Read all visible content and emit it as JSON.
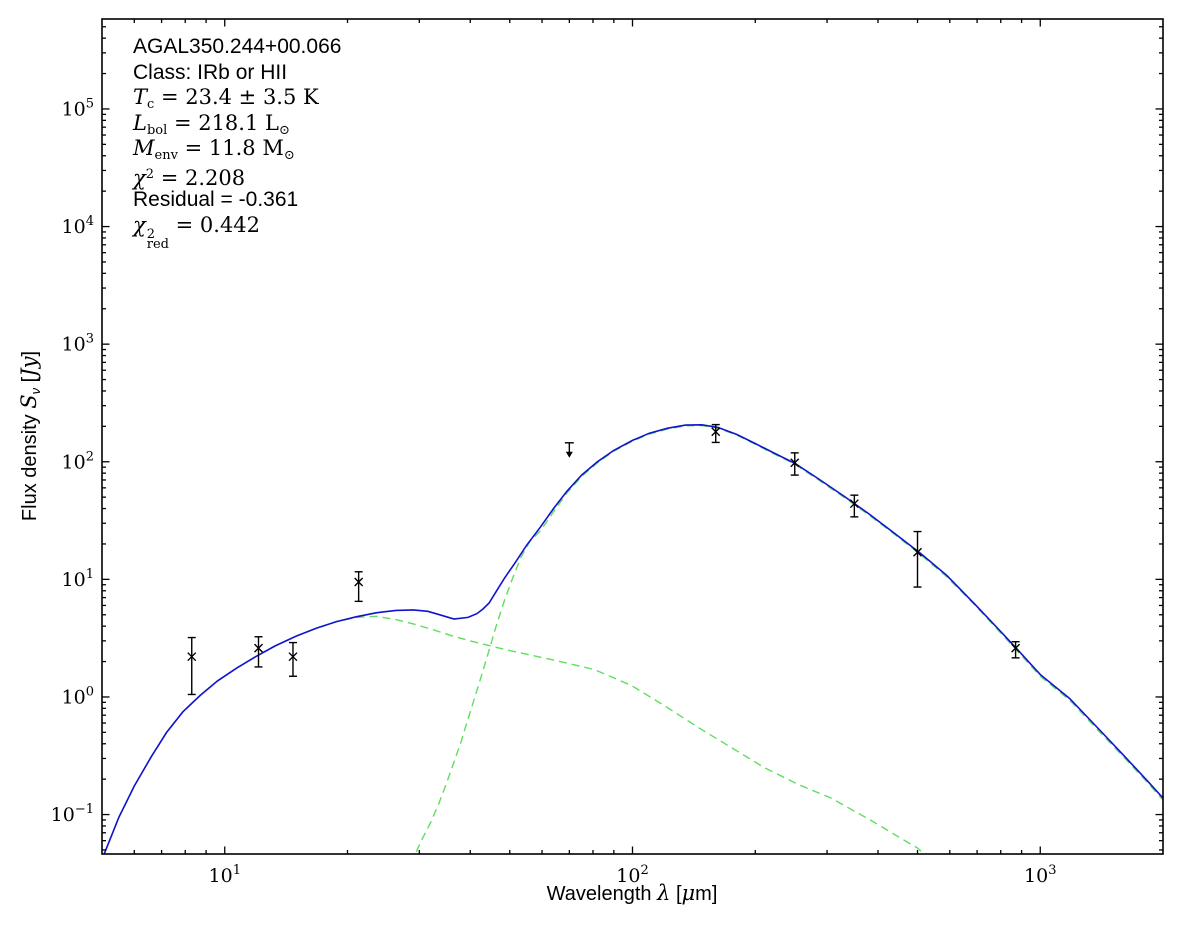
{
  "annotation": {
    "source_name": "AGAL350.244+00.066",
    "class_line": "Class: IRb or HII",
    "tc": {
      "symbol": "T",
      "subscript": "c",
      "text": " = 23.4 ± 3.5 K"
    },
    "lbol": {
      "symbol": "L",
      "subscript": "bol",
      "text": " = 218.1 L",
      "unit_sub": "⊙"
    },
    "menv": {
      "symbol": "M",
      "subscript": "env",
      "text": " = 11.8 M",
      "unit_sub": "⊙"
    },
    "chi2": {
      "symbol": "χ",
      "superscript": "2",
      "text": " = 2.208"
    },
    "residual": "Residual = -0.361",
    "chi2red": {
      "symbol": "χ",
      "superscript": "2",
      "subscript": "red",
      "text": " = 0.442"
    }
  },
  "axes": {
    "xlabel": {
      "word": "Wavelength",
      "symbol": "λ",
      "open": "[",
      "mu": "μ",
      "unit": "m]"
    },
    "ylabel": {
      "word": "Flux density",
      "symbol": "S",
      "subscript": "ν",
      "open": "[",
      "unit": "Jy",
      "close": "]"
    }
  },
  "chart_data": {
    "type": "line",
    "x_scale": "log",
    "y_scale": "log",
    "xlim": [
      5,
      2000
    ],
    "ylim": [
      0.0462,
      582000
    ],
    "x_tick_exponents": [
      1,
      2,
      3
    ],
    "y_tick_exponents": [
      -1,
      0,
      1,
      2,
      3,
      4,
      5
    ],
    "grid": false,
    "legend": "none",
    "colors": {
      "model_total": "#1212cf",
      "model_components": "#5fde5f",
      "data": "#000000"
    },
    "series": [
      {
        "name": "warm-component-model",
        "style": "dashed",
        "color": "#5fde5f",
        "points": [
          [
            5.06,
            0.046
          ],
          [
            5.5,
            0.095
          ],
          [
            6.0,
            0.175
          ],
          [
            6.6,
            0.31
          ],
          [
            7.2,
            0.5
          ],
          [
            7.9,
            0.75
          ],
          [
            8.7,
            1.03
          ],
          [
            9.6,
            1.37
          ],
          [
            10.7,
            1.76
          ],
          [
            11.9,
            2.2
          ],
          [
            13.3,
            2.72
          ],
          [
            15.0,
            3.3
          ],
          [
            16.8,
            3.85
          ],
          [
            18.8,
            4.37
          ],
          [
            21.0,
            4.75
          ],
          [
            23.5,
            4.85
          ],
          [
            26.3,
            4.55
          ],
          [
            29.0,
            4.18
          ],
          [
            32.3,
            3.75
          ],
          [
            36.0,
            3.32
          ],
          [
            40.0,
            3.0
          ],
          [
            44.0,
            2.76
          ],
          [
            50.0,
            2.48
          ],
          [
            59.0,
            2.19
          ],
          [
            70.0,
            1.92
          ],
          [
            81.0,
            1.7
          ],
          [
            99.5,
            1.25
          ],
          [
            120.0,
            0.84
          ],
          [
            145.0,
            0.55
          ],
          [
            175.0,
            0.37
          ],
          [
            211.0,
            0.25
          ],
          [
            255.0,
            0.18
          ],
          [
            307.0,
            0.138
          ],
          [
            385.0,
            0.089
          ],
          [
            458.0,
            0.062
          ],
          [
            500.0,
            0.052
          ],
          [
            535.0,
            0.042
          ]
        ]
      },
      {
        "name": "cold-component-model",
        "style": "dashed",
        "color": "#5fde5f",
        "points": [
          [
            28.0,
            0.03
          ],
          [
            29.3,
            0.046
          ],
          [
            30.5,
            0.062
          ],
          [
            32.0,
            0.086
          ],
          [
            33.5,
            0.124
          ],
          [
            35.0,
            0.185
          ],
          [
            36.5,
            0.28
          ],
          [
            38.0,
            0.42
          ],
          [
            39.5,
            0.65
          ],
          [
            41.0,
            0.98
          ],
          [
            42.7,
            1.55
          ],
          [
            44.5,
            2.5
          ],
          [
            46.4,
            4.1
          ],
          [
            48.5,
            6.6
          ],
          [
            50.8,
            10.2
          ],
          [
            53.3,
            15.5
          ],
          [
            56.0,
            21.0
          ],
          [
            59.5,
            26.0
          ],
          [
            64.0,
            37.5
          ],
          [
            69.0,
            54.0
          ],
          [
            75.0,
            75.0
          ],
          [
            82.0,
            98.0
          ],
          [
            90.0,
            123.0
          ],
          [
            100.0,
            150.0
          ],
          [
            110.0,
            172.0
          ],
          [
            122.0,
            190.0
          ],
          [
            135.0,
            202.0
          ],
          [
            148.0,
            203.0
          ],
          [
            162.0,
            193.0
          ],
          [
            180.0,
            169.0
          ],
          [
            200.0,
            141.0
          ],
          [
            222.0,
            117.0
          ],
          [
            250.0,
            95.5
          ],
          [
            285.0,
            70.5
          ],
          [
            330.0,
            50.0
          ],
          [
            380.0,
            35.3
          ],
          [
            440.0,
            24.0
          ],
          [
            510.0,
            16.1
          ],
          [
            590.0,
            10.5
          ],
          [
            690.0,
            6.1
          ],
          [
            800.0,
            3.5
          ],
          [
            873.0,
            2.52
          ],
          [
            1000.0,
            1.5
          ],
          [
            1180.0,
            0.94
          ],
          [
            1380.0,
            0.53
          ],
          [
            1600.0,
            0.31
          ],
          [
            1825.0,
            0.19
          ],
          [
            2000.0,
            0.133
          ]
        ]
      },
      {
        "name": "total-model",
        "style": "solid",
        "color": "#1212cf",
        "points": [
          [
            5.06,
            0.046
          ],
          [
            5.5,
            0.095
          ],
          [
            6.0,
            0.175
          ],
          [
            6.6,
            0.31
          ],
          [
            7.2,
            0.5
          ],
          [
            7.9,
            0.75
          ],
          [
            8.7,
            1.03
          ],
          [
            9.6,
            1.37
          ],
          [
            10.7,
            1.76
          ],
          [
            11.9,
            2.2
          ],
          [
            13.3,
            2.72
          ],
          [
            15.0,
            3.3
          ],
          [
            16.8,
            3.85
          ],
          [
            18.8,
            4.37
          ],
          [
            21.0,
            4.8
          ],
          [
            23.5,
            5.2
          ],
          [
            26.3,
            5.45
          ],
          [
            29.0,
            5.5
          ],
          [
            31.5,
            5.35
          ],
          [
            34.0,
            4.95
          ],
          [
            36.5,
            4.6
          ],
          [
            39.5,
            4.75
          ],
          [
            41.5,
            5.1
          ],
          [
            43.0,
            5.6
          ],
          [
            44.5,
            6.3
          ],
          [
            46.0,
            7.6
          ],
          [
            48.5,
            10.2
          ],
          [
            51.5,
            13.8
          ],
          [
            55.0,
            19.5
          ],
          [
            59.5,
            28.0
          ],
          [
            64.0,
            40.0
          ],
          [
            69.0,
            56.0
          ],
          [
            75.0,
            77.0
          ],
          [
            82.0,
            100.0
          ],
          [
            90.0,
            125.0
          ],
          [
            100.0,
            152.0
          ],
          [
            110.0,
            175.0
          ],
          [
            122.0,
            193.0
          ],
          [
            135.0,
            205.0
          ],
          [
            148.0,
            206.0
          ],
          [
            162.0,
            196.0
          ],
          [
            180.0,
            171.0
          ],
          [
            200.0,
            143.0
          ],
          [
            222.0,
            119.0
          ],
          [
            250.0,
            97.0
          ],
          [
            285.0,
            72.0
          ],
          [
            330.0,
            51.0
          ],
          [
            380.0,
            36.0
          ],
          [
            440.0,
            24.5
          ],
          [
            510.0,
            16.5
          ],
          [
            590.0,
            10.8
          ],
          [
            690.0,
            6.2
          ],
          [
            800.0,
            3.6
          ],
          [
            873.0,
            2.6
          ],
          [
            1000.0,
            1.55
          ],
          [
            1180.0,
            0.97
          ],
          [
            1380.0,
            0.55
          ],
          [
            1600.0,
            0.32
          ],
          [
            1825.0,
            0.196
          ],
          [
            2000.0,
            0.138
          ]
        ]
      }
    ],
    "points": [
      {
        "wavelength": 8.3,
        "flux": 2.2,
        "flux_lo": 1.05,
        "flux_hi": 3.2,
        "marker": "x"
      },
      {
        "wavelength": 12.1,
        "flux": 2.6,
        "flux_lo": 1.8,
        "flux_hi": 3.25,
        "marker": "x"
      },
      {
        "wavelength": 14.7,
        "flux": 2.2,
        "flux_lo": 1.5,
        "flux_hi": 2.9,
        "marker": "x"
      },
      {
        "wavelength": 21.3,
        "flux": 9.5,
        "flux_lo": 6.5,
        "flux_hi": 11.6,
        "marker": "x"
      },
      {
        "wavelength": 160,
        "flux": 180,
        "flux_lo": 146,
        "flux_hi": 207,
        "marker": "x"
      },
      {
        "wavelength": 250,
        "flux": 98,
        "flux_lo": 77,
        "flux_hi": 119,
        "marker": "x"
      },
      {
        "wavelength": 350,
        "flux": 44,
        "flux_lo": 34,
        "flux_hi": 52,
        "marker": "x"
      },
      {
        "wavelength": 500,
        "flux": 17,
        "flux_lo": 8.6,
        "flux_hi": 25.5,
        "marker": "x"
      },
      {
        "wavelength": 870,
        "flux": 2.6,
        "flux_lo": 2.15,
        "flux_hi": 2.95,
        "marker": "x"
      }
    ],
    "upper_limit": {
      "wavelength": 70,
      "flux": 145
    }
  }
}
